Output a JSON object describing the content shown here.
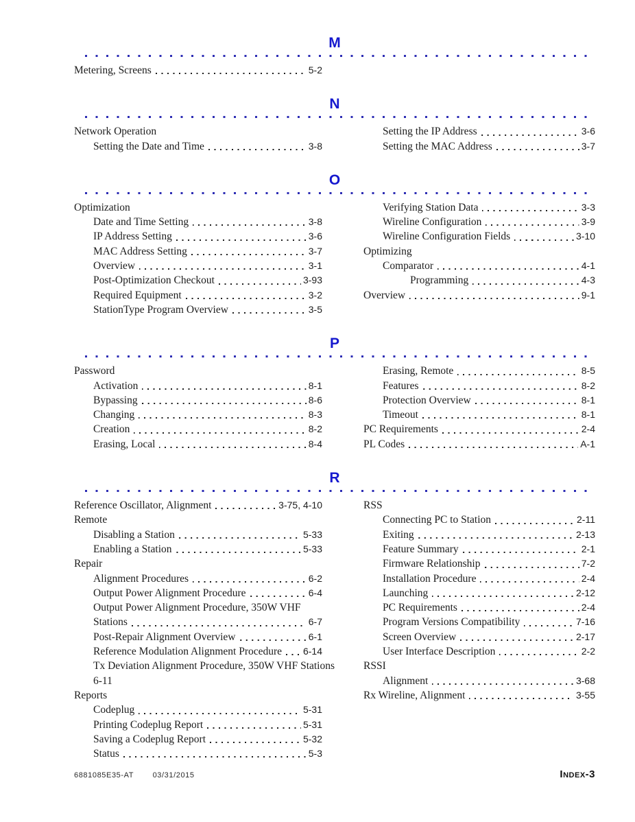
{
  "page": {
    "colors": {
      "accent": "#1518ce",
      "rule_dots": "#2d2db4",
      "text": "#1c1c1c"
    },
    "footer": {
      "doc_number": "6881085E35-AT",
      "date": "03/31/2015",
      "page_label": "Index-3"
    },
    "sections": [
      {
        "letter": "M",
        "left": [
          {
            "label": "Metering, Screens",
            "page": "5-2",
            "indent": 0,
            "leader": true
          }
        ],
        "right": []
      },
      {
        "letter": "N",
        "left": [
          {
            "label": "Network Operation",
            "page": "",
            "indent": 0,
            "leader": false
          },
          {
            "label": "Setting the Date and Time",
            "page": "3-8",
            "indent": 1,
            "leader": true
          }
        ],
        "right": [
          {
            "label": "Setting the IP Address",
            "page": "3-6",
            "indent": 1,
            "leader": true
          },
          {
            "label": "Setting the MAC Address",
            "page": "3-7",
            "indent": 1,
            "leader": true
          }
        ]
      },
      {
        "letter": "O",
        "left": [
          {
            "label": "Optimization",
            "page": "",
            "indent": 0,
            "leader": false
          },
          {
            "label": "Date and Time Setting",
            "page": "3-8",
            "indent": 1,
            "leader": true
          },
          {
            "label": "IP Address Setting",
            "page": "3-6",
            "indent": 1,
            "leader": true
          },
          {
            "label": "MAC Address Setting",
            "page": "3-7",
            "indent": 1,
            "leader": true
          },
          {
            "label": "Overview",
            "page": "3-1",
            "indent": 1,
            "leader": true
          },
          {
            "label": "Post-Optimization Checkout",
            "page": "3-93",
            "indent": 1,
            "leader": true
          },
          {
            "label": "Required Equipment",
            "page": "3-2",
            "indent": 1,
            "leader": true
          },
          {
            "label": "StationType Program Overview",
            "page": "3-5",
            "indent": 1,
            "leader": true
          }
        ],
        "right": [
          {
            "label": "Verifying Station Data",
            "page": "3-3",
            "indent": 1,
            "leader": true
          },
          {
            "label": "Wireline Configuration",
            "page": "3-9",
            "indent": 1,
            "leader": true
          },
          {
            "label": "Wireline Configuration Fields",
            "page": "3-10",
            "indent": 1,
            "leader": true
          },
          {
            "label": "Optimizing",
            "page": "",
            "indent": 0,
            "leader": false
          },
          {
            "label": "Comparator",
            "page": "4-1",
            "indent": 1,
            "leader": true
          },
          {
            "label": "Programming",
            "page": "4-3",
            "indent": 2,
            "leader": true
          },
          {
            "label": "Overview",
            "page": "9-1",
            "indent": 0,
            "leader": true
          }
        ]
      },
      {
        "letter": "P",
        "left": [
          {
            "label": "Password",
            "page": "",
            "indent": 0,
            "leader": false
          },
          {
            "label": "Activation",
            "page": "8-1",
            "indent": 1,
            "leader": true
          },
          {
            "label": "Bypassing",
            "page": "8-6",
            "indent": 1,
            "leader": true
          },
          {
            "label": "Changing",
            "page": "8-3",
            "indent": 1,
            "leader": true
          },
          {
            "label": "Creation",
            "page": "8-2",
            "indent": 1,
            "leader": true
          },
          {
            "label": "Erasing, Local",
            "page": "8-4",
            "indent": 1,
            "leader": true
          }
        ],
        "right": [
          {
            "label": "Erasing, Remote",
            "page": "8-5",
            "indent": 1,
            "leader": true
          },
          {
            "label": "Features",
            "page": "8-2",
            "indent": 1,
            "leader": true
          },
          {
            "label": "Protection Overview",
            "page": "8-1",
            "indent": 1,
            "leader": true
          },
          {
            "label": "Timeout",
            "page": "8-1",
            "indent": 1,
            "leader": true
          },
          {
            "label": "PC Requirements",
            "page": "2-4",
            "indent": 0,
            "leader": true
          },
          {
            "label": "PL Codes",
            "page": "A-1",
            "indent": 0,
            "leader": true
          }
        ]
      },
      {
        "letter": "R",
        "left": [
          {
            "label": "Reference Oscillator, Alignment",
            "page": "3-75, 4-10",
            "indent": 0,
            "leader": true
          },
          {
            "label": "Remote",
            "page": "",
            "indent": 0,
            "leader": false
          },
          {
            "label": "Disabling a Station",
            "page": "5-33",
            "indent": 1,
            "leader": true
          },
          {
            "label": "Enabling a Station",
            "page": "5-33",
            "indent": 1,
            "leader": true
          },
          {
            "label": "Repair",
            "page": "",
            "indent": 0,
            "leader": false
          },
          {
            "label": "Alignment Procedures",
            "page": "6-2",
            "indent": 1,
            "leader": true
          },
          {
            "label": "Output Power Alignment Procedure",
            "page": "6-4",
            "indent": 1,
            "leader": true
          },
          {
            "label": "Output Power Alignment Procedure, 350W VHF",
            "page": "",
            "indent": 1,
            "leader": false
          },
          {
            "label": "Stations",
            "page": "6-7",
            "indent": 1,
            "leader": true
          },
          {
            "label": "Post-Repair Alignment Overview",
            "page": "6-1",
            "indent": 1,
            "leader": true
          },
          {
            "label": "Reference Modulation Alignment Procedure",
            "page": "6-14",
            "indent": 1,
            "leader": true
          },
          {
            "label": "Tx Deviation Alignment Procedure, 350W VHF Stations",
            "page": "",
            "indent": 1,
            "leader": false
          },
          {
            "label": "6-11",
            "page": "",
            "indent": 1,
            "leader": false
          },
          {
            "label": "Reports",
            "page": "",
            "indent": 0,
            "leader": false
          },
          {
            "label": "Codeplug",
            "page": "5-31",
            "indent": 1,
            "leader": true
          },
          {
            "label": "Printing Codeplug Report",
            "page": "5-31",
            "indent": 1,
            "leader": true
          },
          {
            "label": "Saving a Codeplug Report",
            "page": "5-32",
            "indent": 1,
            "leader": true
          },
          {
            "label": "Status",
            "page": "5-3",
            "indent": 1,
            "leader": true
          }
        ],
        "right": [
          {
            "label": "RSS",
            "page": "",
            "indent": 0,
            "leader": false
          },
          {
            "label": "Connecting PC to Station",
            "page": "2-11",
            "indent": 1,
            "leader": true
          },
          {
            "label": "Exiting",
            "page": "2-13",
            "indent": 1,
            "leader": true
          },
          {
            "label": "Feature Summary",
            "page": "2-1",
            "indent": 1,
            "leader": true
          },
          {
            "label": "Firmware Relationship",
            "page": "7-2",
            "indent": 1,
            "leader": true
          },
          {
            "label": "Installation Procedure",
            "page": "2-4",
            "indent": 1,
            "leader": true
          },
          {
            "label": "Launching",
            "page": "2-12",
            "indent": 1,
            "leader": true
          },
          {
            "label": "PC Requirements",
            "page": "2-4",
            "indent": 1,
            "leader": true
          },
          {
            "label": "Program Versions Compatibility",
            "page": "7-16",
            "indent": 1,
            "leader": true
          },
          {
            "label": "Screen Overview",
            "page": "2-17",
            "indent": 1,
            "leader": true
          },
          {
            "label": "User Interface Description",
            "page": "2-2",
            "indent": 1,
            "leader": true
          },
          {
            "label": "RSSI",
            "page": "",
            "indent": 0,
            "leader": false
          },
          {
            "label": "Alignment",
            "page": "3-68",
            "indent": 1,
            "leader": true
          },
          {
            "label": "Rx Wireline, Alignment",
            "page": "3-55",
            "indent": 0,
            "leader": true
          }
        ]
      }
    ]
  }
}
